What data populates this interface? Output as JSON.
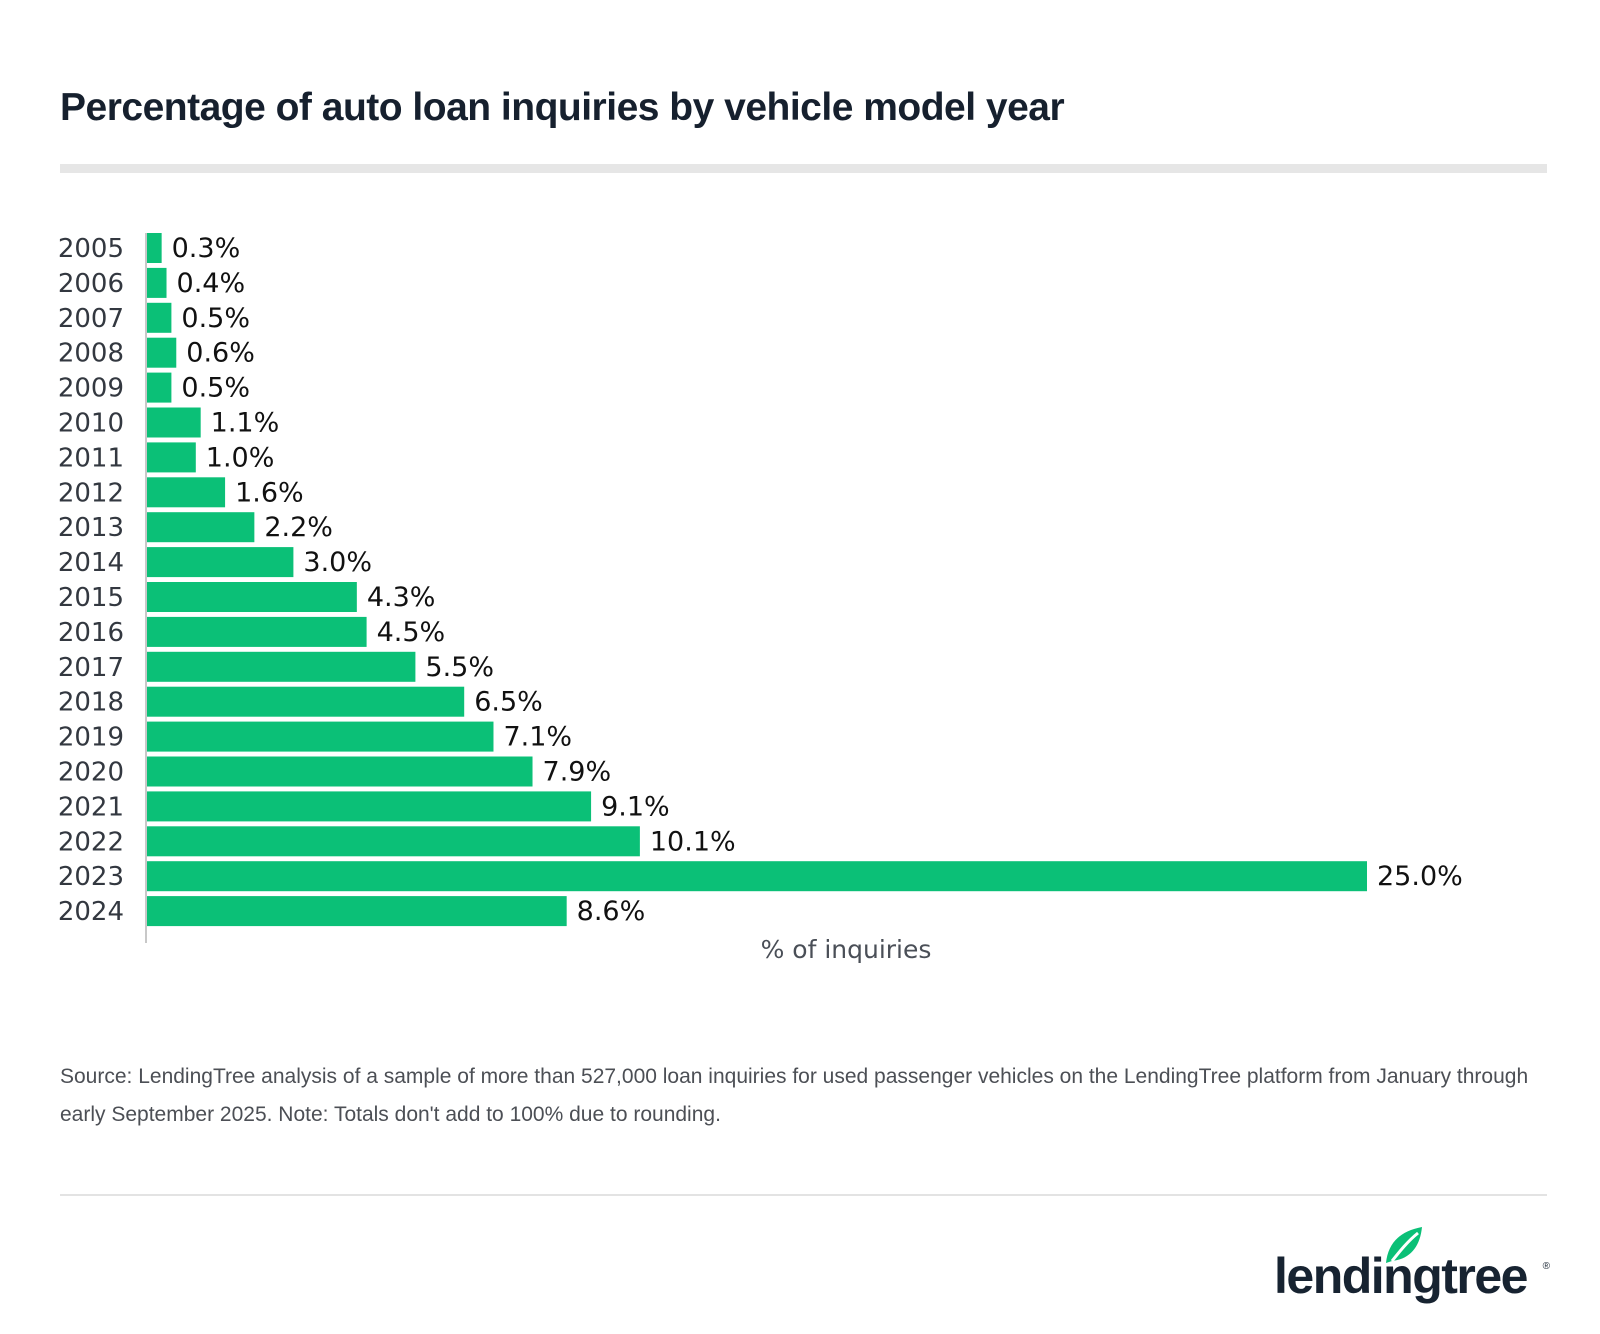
{
  "header": {
    "title": "Percentage of auto loan inquiries by vehicle model year"
  },
  "chart_data": {
    "type": "bar",
    "orientation": "horizontal",
    "title": "Percentage of auto loan inquiries by vehicle model year",
    "xlabel": "% of inquiries",
    "ylabel": "",
    "categories": [
      "2005",
      "2006",
      "2007",
      "2008",
      "2009",
      "2010",
      "2011",
      "2012",
      "2013",
      "2014",
      "2015",
      "2016",
      "2017",
      "2018",
      "2019",
      "2020",
      "2021",
      "2022",
      "2023",
      "2024"
    ],
    "values": [
      0.3,
      0.4,
      0.5,
      0.6,
      0.5,
      1.1,
      1.0,
      1.6,
      2.2,
      3.0,
      4.3,
      4.5,
      5.5,
      6.5,
      7.1,
      7.9,
      9.1,
      10.1,
      25.0,
      8.6
    ],
    "value_labels": [
      "0.3%",
      "0.4%",
      "0.5%",
      "0.6%",
      "0.5%",
      "1.1%",
      "1.0%",
      "1.6%",
      "2.2%",
      "3.0%",
      "4.3%",
      "4.5%",
      "5.5%",
      "6.5%",
      "7.1%",
      "7.9%",
      "9.1%",
      "10.1%",
      "25.0%",
      "8.6%"
    ],
    "xlim": [
      0,
      25
    ],
    "grid": false,
    "legend": "none",
    "bar_color": "#0bc077"
  },
  "footer": {
    "source": "Source: LendingTree analysis of a sample of more than 527,000 loan inquiries for used passenger vehicles on the LendingTree platform from January through early September 2025. Note: Totals don't add to 100% due to rounding.",
    "logo_text": "lendingtree",
    "logo_mark": "®",
    "brand_color": "#0bc077"
  }
}
